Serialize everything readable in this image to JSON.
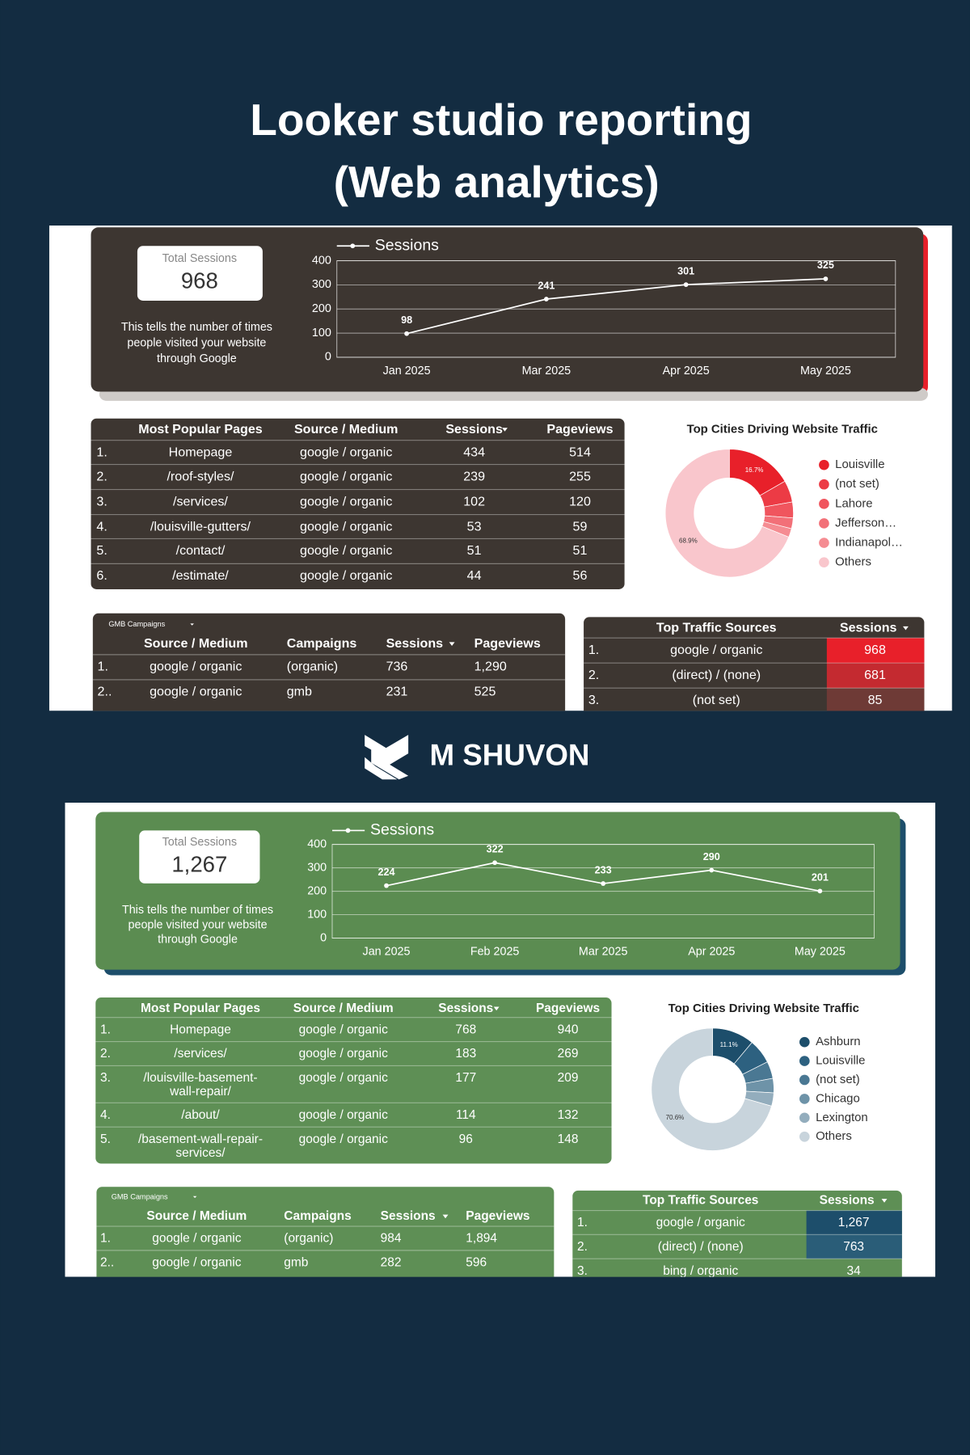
{
  "header": {
    "title_lines": [
      "Looker studio reporting",
      "(Web analytics)"
    ]
  },
  "brand": "M SHUVON",
  "dashboards": [
    {
      "kpi": {
        "label": "Total Sessions",
        "value": "968"
      },
      "note_lines": [
        "This tells the number of times",
        "people visited your website",
        "through Google"
      ],
      "sessions_chart": {
        "type": "line",
        "categories": [
          "Jan 2025",
          "Mar 2025",
          "Apr 2025",
          "May 2025"
        ],
        "series": [
          {
            "name": "Sessions",
            "color": "#ffffff",
            "values": [
              98,
              241,
              301,
              325
            ]
          }
        ],
        "ylim": [
          0,
          400
        ],
        "yticks": [
          0,
          100,
          200,
          300,
          400
        ],
        "grid": true
      },
      "pages_table": {
        "headers": [
          "Most Popular Pages",
          "Source / Medium",
          "Sessions",
          "Pageviews"
        ],
        "rows": [
          [
            "1.",
            [
              "Homepage"
            ],
            "google / organic",
            "434",
            "514"
          ],
          [
            "2.",
            [
              "/roof-styles/"
            ],
            "google / organic",
            "239",
            "255"
          ],
          [
            "3.",
            [
              "/services/"
            ],
            "google / organic",
            "102",
            "120"
          ],
          [
            "4.",
            [
              "/louisville-gutters/"
            ],
            "google / organic",
            "53",
            "59"
          ],
          [
            "5.",
            [
              "/contact/"
            ],
            "google / organic",
            "51",
            "51"
          ],
          [
            "6.",
            [
              "/estimate/"
            ],
            "google / organic",
            "44",
            "56"
          ]
        ]
      },
      "cities_chart": {
        "type": "pie",
        "title": "Top Cities Driving Website Traffic",
        "categories": [
          "Louisville",
          "(not set)",
          "Lahore",
          "Jefferson…",
          "Indianapol…",
          "Others"
        ],
        "values": [
          16.7,
          5.5,
          4,
          2.7,
          2.2,
          68.9
        ],
        "value_labels": [
          "16.7%",
          null,
          null,
          null,
          null,
          "68.9%"
        ],
        "colors": [
          "#e8202a",
          "#ec3b45",
          "#f0555e",
          "#f27078",
          "#f58c92",
          "#f9c6cc"
        ]
      },
      "gmb_table": {
        "label": "GMB Campaigns",
        "headers": [
          "Source / Medium",
          "Campaigns",
          "Sessions",
          "Pageviews"
        ],
        "rows": [
          [
            "1.",
            "google / organic",
            "(organic)",
            "736",
            "1,290"
          ],
          [
            "2..",
            "google / organic",
            "gmb",
            "231",
            "525"
          ]
        ]
      },
      "sources_table": {
        "headers": [
          "Top Traffic Sources",
          "Sessions"
        ],
        "rows": [
          [
            "1.",
            "google / organic",
            "968"
          ],
          [
            "2.",
            "(direct) / (none)",
            "681"
          ],
          [
            "3.",
            "(not set)",
            "85"
          ]
        ]
      }
    },
    {
      "kpi": {
        "label": "Total Sessions",
        "value": "1,267"
      },
      "note_lines": [
        "This tells the number of times",
        "people visited your website",
        "through Google"
      ],
      "sessions_chart": {
        "type": "line",
        "categories": [
          "Jan 2025",
          "Feb 2025",
          "Mar 2025",
          "Apr 2025",
          "May 2025"
        ],
        "series": [
          {
            "name": "Sessions",
            "color": "#ffffff",
            "values": [
              224,
              322,
              233,
              290,
              201
            ]
          }
        ],
        "ylim": [
          0,
          400
        ],
        "yticks": [
          0,
          100,
          200,
          300,
          400
        ],
        "grid": true
      },
      "pages_table": {
        "headers": [
          "Most Popular Pages",
          "Source / Medium",
          "Sessions",
          "Pageviews"
        ],
        "rows": [
          [
            "1.",
            [
              "Homepage"
            ],
            "google / organic",
            "768",
            "940"
          ],
          [
            "2.",
            [
              "/services/"
            ],
            "google / organic",
            "183",
            "269"
          ],
          [
            "3.",
            [
              "/louisville-basement-",
              "wall-repair/"
            ],
            "google / organic",
            "177",
            "209"
          ],
          [
            "4.",
            [
              "/about/"
            ],
            "google / organic",
            "114",
            "132"
          ],
          [
            "5.",
            [
              "/basement-wall-repair-",
              "services/"
            ],
            "google / organic",
            "96",
            "148"
          ]
        ]
      },
      "cities_chart": {
        "type": "pie",
        "title": "Top Cities Driving Website Traffic",
        "categories": [
          "Ashburn",
          "Louisville",
          "(not set)",
          "Chicago",
          "Lexington",
          "Others"
        ],
        "values": [
          11.1,
          6.5,
          4.5,
          3.8,
          3.5,
          70.6
        ],
        "value_labels": [
          "11.1%",
          null,
          null,
          null,
          null,
          "70.6%"
        ],
        "colors": [
          "#1d4e6b",
          "#2d6180",
          "#4a7893",
          "#6e93a8",
          "#93adbd",
          "#c8d4dc"
        ]
      },
      "gmb_table": {
        "label": "GMB Campaigns",
        "headers": [
          "Source / Medium",
          "Campaigns",
          "Sessions",
          "Pageviews"
        ],
        "rows": [
          [
            "1.",
            "google / organic",
            "(organic)",
            "984",
            "1,894"
          ],
          [
            "2..",
            "google / organic",
            "gmb",
            "282",
            "596"
          ]
        ]
      },
      "sources_table": {
        "headers": [
          "Top Traffic Sources",
          "Sessions"
        ],
        "rows": [
          [
            "1.",
            "google / organic",
            "1,267"
          ],
          [
            "2.",
            "(direct) / (none)",
            "763"
          ],
          [
            "3.",
            "bing / organic",
            "34"
          ]
        ]
      }
    }
  ]
}
